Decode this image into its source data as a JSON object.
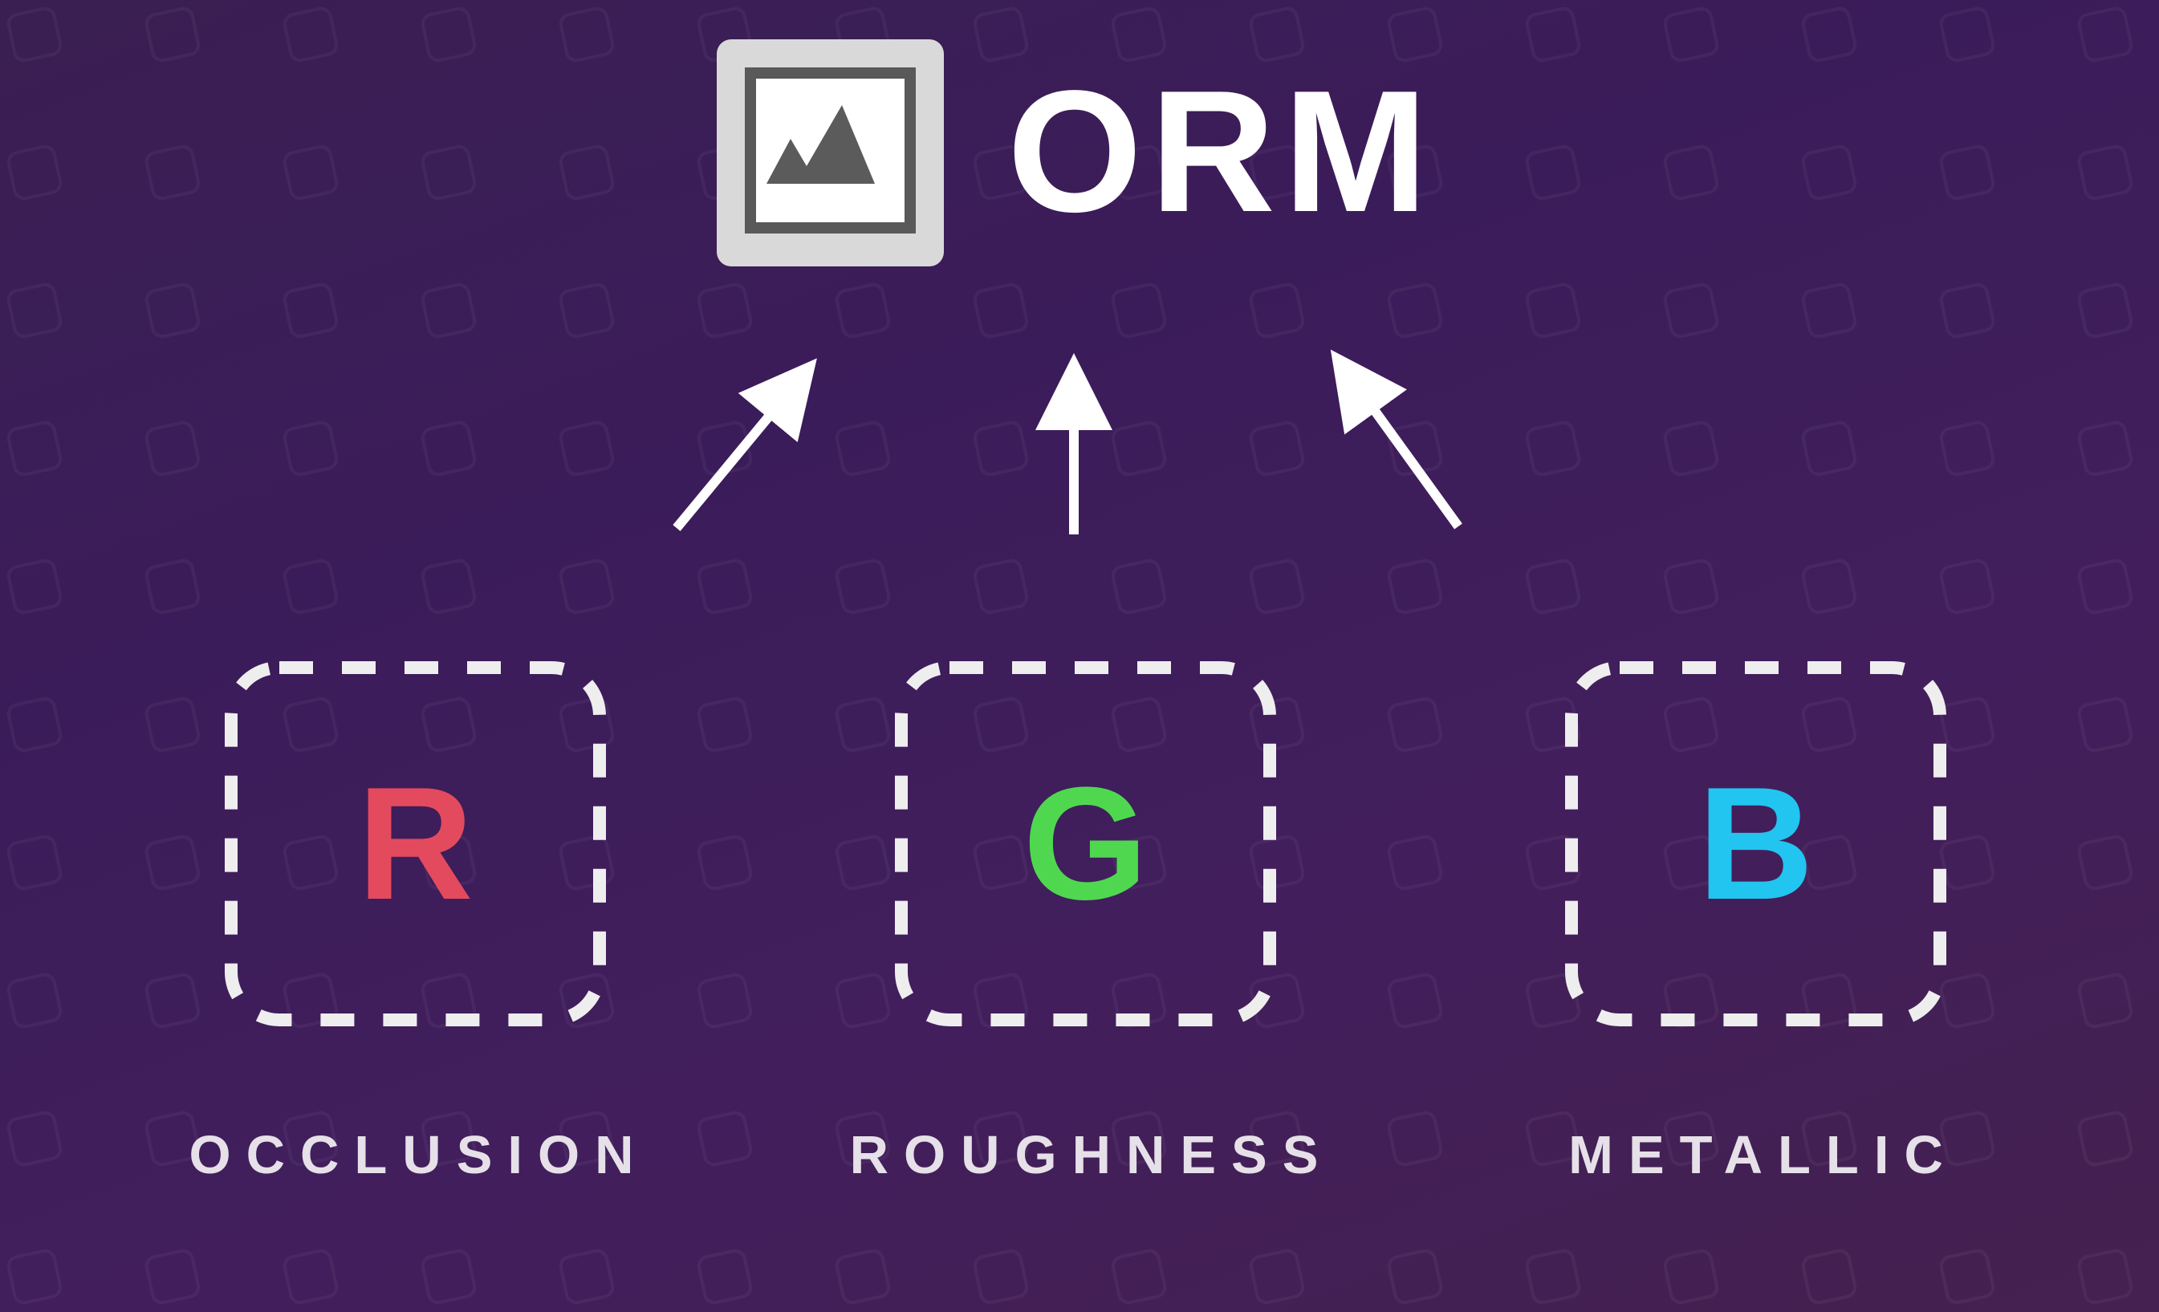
{
  "title": "ORM",
  "icons": {
    "texture": "image-icon"
  },
  "channels": [
    {
      "letter": "R",
      "label": "OCCLUSION",
      "color": "#e44a5d"
    },
    {
      "letter": "G",
      "label": "ROUGHNESS",
      "color": "#4fd84f"
    },
    {
      "letter": "B",
      "label": "METALLIC",
      "color": "#22c4f0"
    }
  ]
}
